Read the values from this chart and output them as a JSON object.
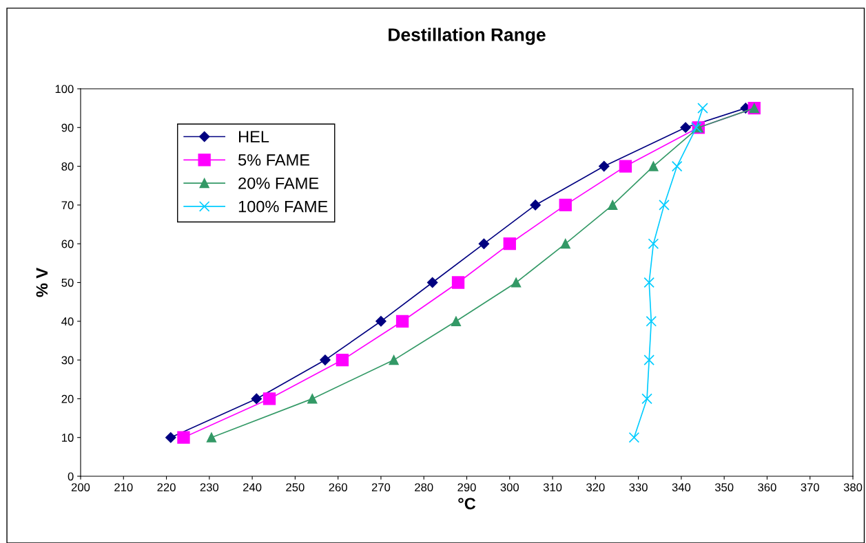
{
  "chart_data": {
    "type": "line",
    "title": "Destillation Range",
    "xlabel": "°C",
    "ylabel": "% V",
    "xlim": [
      200,
      380
    ],
    "xticks": [
      200,
      210,
      220,
      230,
      240,
      250,
      260,
      270,
      280,
      290,
      300,
      310,
      320,
      330,
      340,
      350,
      360,
      370,
      380
    ],
    "ylim": [
      0,
      100
    ],
    "yticks": [
      0,
      10,
      20,
      30,
      40,
      50,
      60,
      70,
      80,
      90,
      100
    ],
    "grid": false,
    "legend": "top left",
    "series": [
      {
        "name": "HEL",
        "color": "#000080",
        "marker": "diamond",
        "x": [
          221,
          241,
          257,
          270,
          282,
          294,
          306,
          322,
          341,
          355
        ],
        "values": [
          10,
          20,
          30,
          40,
          50,
          60,
          70,
          80,
          90,
          95
        ]
      },
      {
        "name": "5% FAME",
        "color": "#ff00ff",
        "marker": "square",
        "x": [
          224,
          244,
          261,
          275,
          288,
          300,
          313,
          327,
          344,
          357
        ],
        "values": [
          10,
          20,
          30,
          40,
          50,
          60,
          70,
          80,
          90,
          95
        ]
      },
      {
        "name": "20% FAME",
        "color": "#339966",
        "marker": "triangle",
        "x": [
          230.5,
          254,
          273,
          287.5,
          301.5,
          313,
          324,
          333.5,
          344,
          357
        ],
        "values": [
          10,
          20,
          30,
          40,
          50,
          60,
          70,
          80,
          90,
          95
        ]
      },
      {
        "name": "100% FAME",
        "color": "#00ccff",
        "marker": "cross",
        "x": [
          329,
          332,
          332.5,
          333,
          332.5,
          333.5,
          336,
          339,
          343.5,
          345
        ],
        "values": [
          10,
          20,
          30,
          40,
          50,
          60,
          70,
          80,
          90,
          95
        ]
      }
    ]
  }
}
